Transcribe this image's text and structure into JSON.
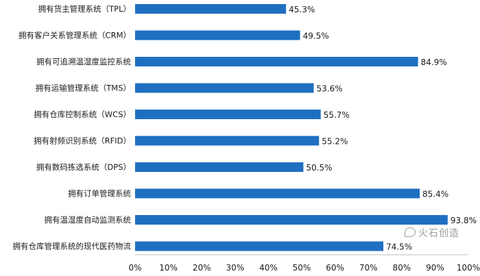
{
  "chart_data": {
    "type": "bar",
    "orientation": "horizontal",
    "categories": [
      "拥有货主管理系统（TPL）",
      "拥有客户关系管理系统（CRM）",
      "拥有可追溯温湿度监控系统",
      "拥有运输管理系统（TMS）",
      "拥有仓库控制系统（WCS）",
      "拥有射频识别系统（RFID）",
      "拥有数码拣选系统（DPS）",
      "拥有订单管理系统",
      "拥有温湿度自动监测系统",
      "拥有仓库管理系统的现代医药物流"
    ],
    "values": [
      45.3,
      49.5,
      84.9,
      53.6,
      55.7,
      55.2,
      50.5,
      85.4,
      93.8,
      74.5
    ],
    "value_labels": [
      "45.3%",
      "49.5%",
      "84.9%",
      "53.6%",
      "55.7%",
      "55.2%",
      "50.5%",
      "85.4%",
      "93.8%",
      "74.5%"
    ],
    "xlim": [
      0,
      100
    ],
    "xticks": [
      "0%",
      "10%",
      "20%",
      "30%",
      "40%",
      "50%",
      "60%",
      "70%",
      "80%",
      "90%",
      "100%"
    ],
    "bar_color": "#1f6fc1",
    "grid": false
  },
  "watermark": {
    "text": "火石创造",
    "icon": "wechat-icon"
  }
}
